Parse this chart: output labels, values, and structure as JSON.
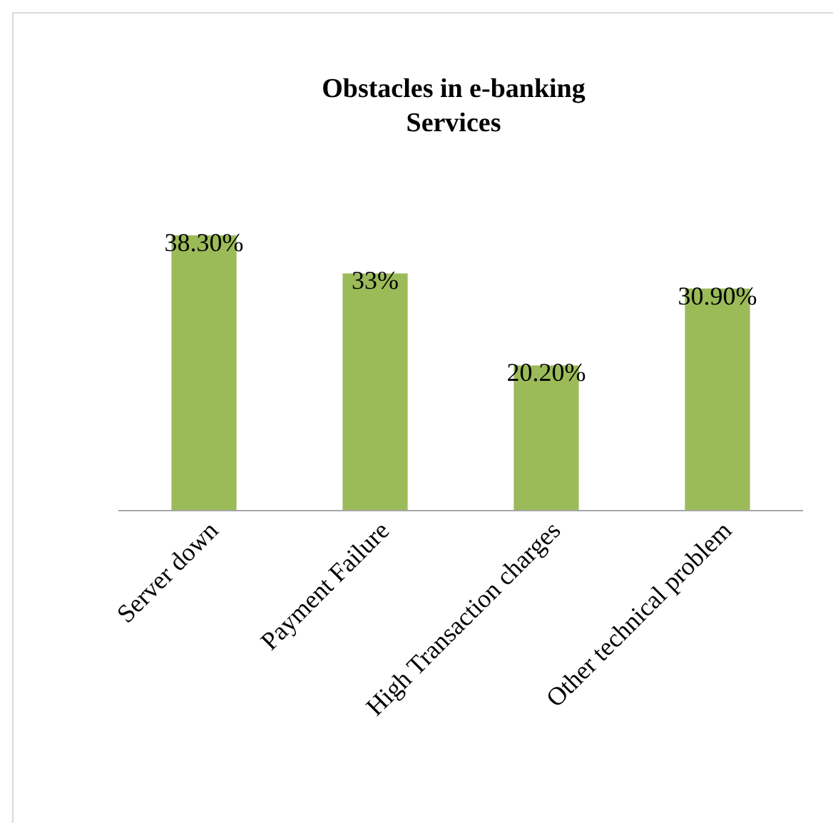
{
  "chart_data": {
    "type": "bar",
    "title": "Obstacles in e-banking Services",
    "categories": [
      "Server down",
      "Payment Failure",
      "High Transaction charges",
      "Other technical problem"
    ],
    "values": [
      38.3,
      33,
      20.2,
      30.9
    ],
    "color": "#9bbb59",
    "value_labels": [
      "38.30%",
      "33%",
      "20.20%",
      "30.90%"
    ]
  }
}
